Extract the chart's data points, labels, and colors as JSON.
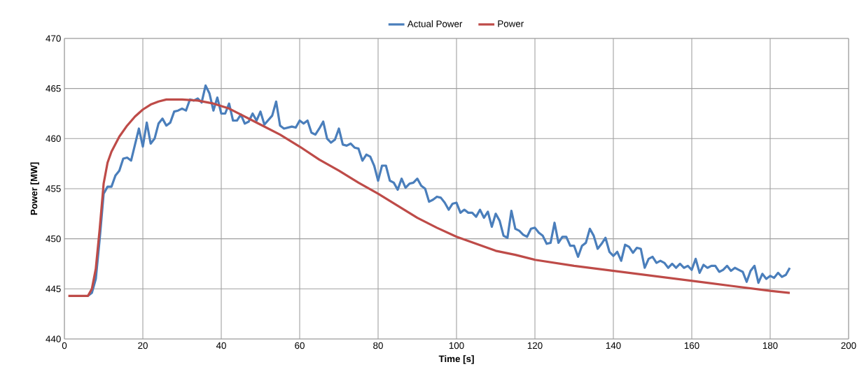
{
  "chart_data": {
    "type": "line",
    "xlabel": "Time [s]",
    "ylabel": "Power [MW]",
    "xlim": [
      0,
      200
    ],
    "ylim": [
      440,
      470
    ],
    "xticks": [
      0,
      20,
      40,
      60,
      80,
      100,
      120,
      140,
      160,
      180,
      200
    ],
    "yticks": [
      440,
      445,
      450,
      455,
      460,
      465,
      470
    ],
    "grid": true,
    "legend": "top",
    "marker": "none",
    "line_style": "solid",
    "series": [
      {
        "name": "Actual Power",
        "color": "#4a7ebb",
        "x": [
          6,
          7,
          8,
          9,
          10,
          11,
          12,
          13,
          14,
          15,
          16,
          17,
          19,
          20,
          21,
          22,
          23,
          24,
          25,
          26,
          27,
          28,
          29,
          30,
          31,
          32,
          33,
          34,
          35,
          36,
          37,
          38,
          39,
          40,
          41,
          42,
          43,
          44,
          45,
          46,
          47,
          48,
          49,
          50,
          51,
          53,
          54,
          55,
          56,
          58,
          59,
          60,
          61,
          62,
          63,
          64,
          65,
          66,
          67,
          68,
          69,
          70,
          71,
          72,
          73,
          74,
          75,
          76,
          77,
          78,
          79,
          80,
          81,
          82,
          83,
          84,
          85,
          86,
          87,
          88,
          89,
          90,
          91,
          92,
          93,
          94,
          95,
          96,
          97,
          98,
          99,
          100,
          101,
          102,
          103,
          104,
          105,
          106,
          107,
          108,
          109,
          110,
          111,
          112,
          113,
          114,
          115,
          116,
          117,
          118,
          119,
          120,
          121,
          122,
          123,
          124,
          125,
          126,
          127,
          128,
          129,
          130,
          131,
          132,
          133,
          134,
          135,
          136,
          137,
          138,
          139,
          140,
          141,
          142,
          143,
          144,
          145,
          146,
          147,
          148,
          149,
          150,
          151,
          152,
          153,
          154,
          155,
          156,
          157,
          158,
          159,
          160,
          161,
          162,
          163,
          164,
          165,
          166,
          167,
          168,
          169,
          170,
          171,
          172,
          173,
          174,
          175,
          176,
          177,
          178,
          179,
          180,
          181,
          182,
          183,
          184,
          185
        ],
        "values": [
          444.3,
          444.6,
          446,
          450,
          454.5,
          455.2,
          455.2,
          456.3,
          456.8,
          458,
          458.1,
          457.8,
          461,
          459.2,
          461.6,
          459.5,
          460,
          461.5,
          462,
          461.3,
          461.6,
          462.7,
          462.8,
          463,
          462.8,
          463.9,
          463.8,
          464,
          463.6,
          465.3,
          464.5,
          462.8,
          464.1,
          462.5,
          462.5,
          463.5,
          461.8,
          461.8,
          462.4,
          461.5,
          461.7,
          462.5,
          461.8,
          462.7,
          461.4,
          462.3,
          463.7,
          461.3,
          461,
          461.2,
          461.1,
          461.8,
          461.5,
          461.8,
          460.6,
          460.4,
          461,
          461.7,
          460,
          459.6,
          459.9,
          461,
          459.4,
          459.3,
          459.5,
          459.1,
          459,
          457.8,
          458.4,
          458.2,
          457.3,
          455.8,
          457.3,
          457.3,
          455.8,
          455.6,
          454.9,
          456,
          455.1,
          455.5,
          455.6,
          456,
          455.3,
          455,
          453.7,
          453.9,
          454.2,
          454.1,
          453.6,
          452.9,
          453.5,
          453.6,
          452.6,
          452.9,
          452.6,
          452.6,
          452.2,
          452.9,
          452.1,
          452.7,
          451.2,
          452.5,
          451.8,
          450.3,
          450.1,
          452.8,
          451,
          450.8,
          450.4,
          450.2,
          451,
          451.1,
          450.6,
          450.3,
          449.5,
          449.6,
          451.6,
          449.6,
          450.2,
          450.2,
          449.3,
          449.3,
          448.2,
          449.3,
          449.6,
          451,
          450.3,
          449,
          449.5,
          450.1,
          448.7,
          448.3,
          448.7,
          447.8,
          449.4,
          449.2,
          448.6,
          449.1,
          449,
          447.1,
          448,
          448.2,
          447.6,
          447.8,
          447.6,
          447.1,
          447.5,
          447.1,
          447.5,
          447.1,
          447.3,
          446.9,
          448,
          446.6,
          447.4,
          447.1,
          447.3,
          447.3,
          446.7,
          446.9,
          447.3,
          446.8,
          447.1,
          446.9,
          446.7,
          445.7,
          446.8,
          447.3,
          445.6,
          446.5,
          446,
          446.3,
          446.1,
          446.6,
          446.2,
          446.4,
          447.1
        ]
      },
      {
        "name": "Power",
        "color": "#be4b48",
        "x": [
          1,
          6,
          7,
          8,
          9,
          10,
          11,
          12,
          14,
          16,
          18,
          20,
          22,
          24,
          26,
          30,
          34,
          38,
          42,
          46,
          50,
          55,
          60,
          65,
          70,
          75,
          80,
          85,
          90,
          95,
          100,
          105,
          110,
          115,
          120,
          130,
          140,
          150,
          160,
          170,
          180,
          185
        ],
        "values": [
          444.3,
          444.3,
          445,
          447,
          451,
          455.5,
          457.6,
          458.7,
          460.2,
          461.3,
          462.2,
          462.9,
          463.4,
          463.7,
          463.9,
          463.9,
          463.8,
          463.5,
          463,
          462.2,
          461.4,
          460.4,
          459.2,
          457.9,
          456.8,
          455.6,
          454.5,
          453.3,
          452.1,
          451.1,
          450.2,
          449.5,
          448.8,
          448.4,
          447.9,
          447.3,
          446.8,
          446.3,
          445.8,
          445.3,
          444.8,
          444.6
        ]
      }
    ]
  }
}
